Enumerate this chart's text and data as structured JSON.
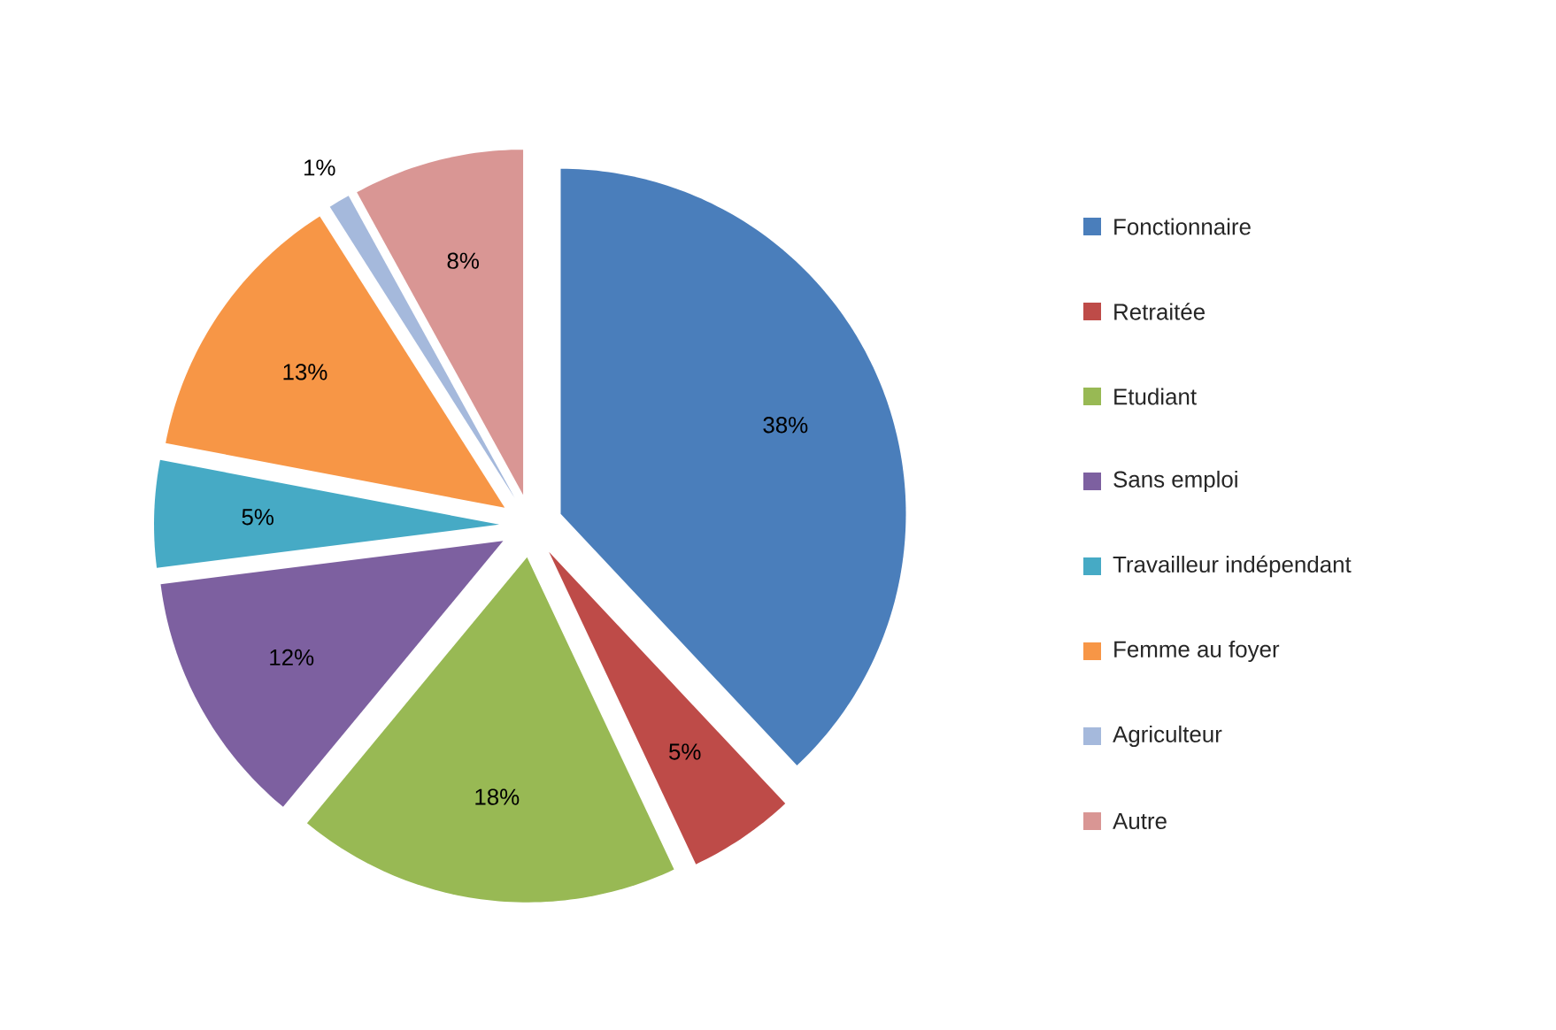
{
  "chart_data": {
    "type": "pie",
    "categories": [
      "Fonctionnaire",
      "Retraitée",
      "Etudiant",
      "Sans emploi",
      "Travailleur indépendant",
      "Femme au foyer",
      "Agriculteur",
      "Autre"
    ],
    "values": [
      38,
      5,
      18,
      12,
      5,
      13,
      1,
      8
    ],
    "value_labels": [
      "38%",
      "5%",
      "18%",
      "12%",
      "5%",
      "13%",
      "1%",
      "8%"
    ],
    "colors": [
      "#4a7ebb",
      "#be4b48",
      "#98b954",
      "#7d60a0",
      "#46aac5",
      "#f79646",
      "#a5b9dc",
      "#d99694"
    ],
    "legend": "right"
  }
}
